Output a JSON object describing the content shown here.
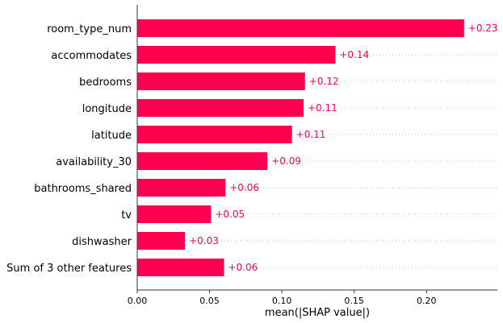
{
  "chart_data": {
    "type": "bar",
    "orientation": "horizontal",
    "categories": [
      "room_type_num",
      "accommodates",
      "bedrooms",
      "longitude",
      "latitude",
      "availability_30",
      "bathrooms_shared",
      "tv",
      "dishwasher",
      "Sum of 3 other features"
    ],
    "values": [
      0.226,
      0.137,
      0.116,
      0.115,
      0.107,
      0.09,
      0.061,
      0.051,
      0.033,
      0.06
    ],
    "value_labels": [
      "+0.23",
      "+0.14",
      "+0.12",
      "+0.11",
      "+0.11",
      "+0.09",
      "+0.06",
      "+0.05",
      "+0.03",
      "+0.06"
    ],
    "xlabel": "mean(|SHAP value|)",
    "ylabel": "",
    "xlim": [
      0,
      0.249
    ],
    "xticks": [
      0.0,
      0.05,
      0.1,
      0.15,
      0.2
    ],
    "xtick_labels": [
      "0.00",
      "0.05",
      "0.10",
      "0.15",
      "0.20"
    ],
    "grid": "horizontal dotted row guides",
    "colors": {
      "bar": "#ff0051",
      "value_label": "#ff0051",
      "grid": "#cccccc",
      "axis": "#333333"
    }
  }
}
